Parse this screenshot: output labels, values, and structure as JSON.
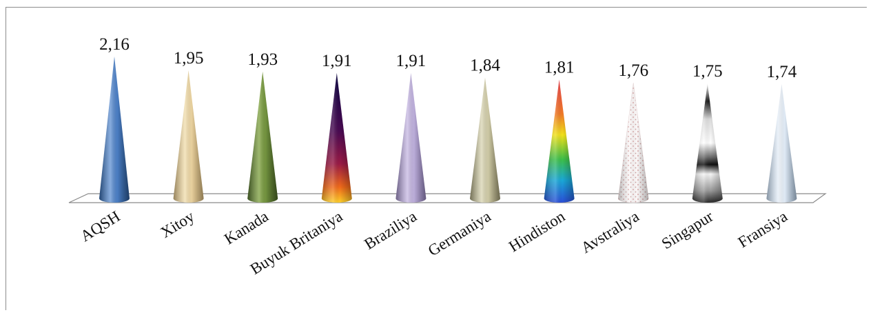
{
  "chart_data": {
    "type": "bar",
    "title": "",
    "xlabel": "",
    "ylabel": "",
    "ylim": [
      0,
      2.16
    ],
    "grid": false,
    "legend": "none",
    "categories": [
      "AQSH",
      "Xitoy",
      "Kanada",
      "Buyuk Britaniya",
      "Braziliya",
      "Germaniya",
      "Hindiston",
      "Avstraliya",
      "Singapur",
      "Fransiya"
    ],
    "values": [
      2.16,
      1.95,
      1.93,
      1.91,
      1.91,
      1.84,
      1.81,
      1.76,
      1.75,
      1.74
    ],
    "value_labels": [
      "2,16",
      "1,95",
      "1,93",
      "1,91",
      "1,91",
      "1,84",
      "1,81",
      "1,76",
      "1,75",
      "1,74"
    ],
    "styles": [
      "blue",
      "parchment",
      "green",
      "purple-orange",
      "lavender",
      "khaki",
      "rainbow",
      "dotted-white",
      "chrome",
      "light-blue"
    ]
  }
}
